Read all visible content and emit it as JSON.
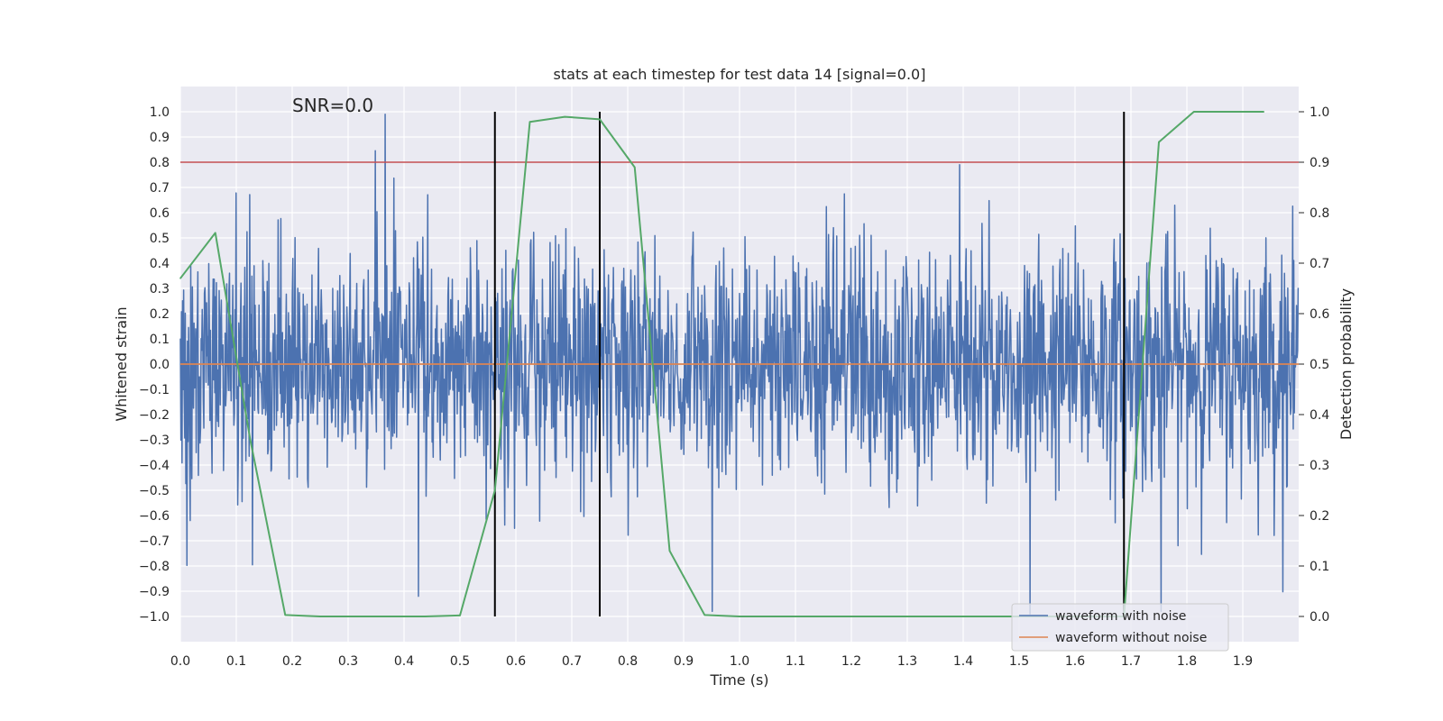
{
  "chart_data": {
    "type": "line",
    "title": "stats at each timestep for test data 14 [signal=0.0]",
    "xlabel": "Time (s)",
    "ylabel": "Whitened strain",
    "ylabel_right": "Detection probability",
    "xlim": [
      0.0,
      2.0
    ],
    "ylim": [
      -1.1,
      1.1
    ],
    "ylim_right": [
      -0.05,
      1.05
    ],
    "xticks": [
      "0.0",
      "0.1",
      "0.2",
      "0.3",
      "0.4",
      "0.5",
      "0.6",
      "0.7",
      "0.8",
      "0.9",
      "1.0",
      "1.1",
      "1.2",
      "1.3",
      "1.4",
      "1.5",
      "1.6",
      "1.7",
      "1.8",
      "1.9"
    ],
    "yticks": [
      "1.0",
      "0.9",
      "0.8",
      "0.7",
      "0.6",
      "0.5",
      "0.4",
      "0.3",
      "0.2",
      "0.1",
      "0.0",
      "−0.1",
      "−0.2",
      "−0.3",
      "−0.4",
      "−0.5",
      "−0.6",
      "−0.7",
      "−0.8",
      "−0.9",
      "−1.0"
    ],
    "yticks_right": [
      "1.0",
      "0.9",
      "0.8",
      "0.7",
      "0.6",
      "0.5",
      "0.4",
      "0.3",
      "0.2",
      "0.1",
      "0.0"
    ],
    "annotation": "SNR=0.0",
    "threshold": {
      "value": 0.9,
      "axis": "right",
      "color": "#c44e52"
    },
    "vertical_lines": [
      0.5625,
      0.75,
      1.6875
    ],
    "legend": {
      "placement": "lower-right"
    },
    "series": [
      {
        "name": "waveform with noise",
        "axis": "left",
        "color": "#4c72b0",
        "kind": "noise",
        "n_points": 2048,
        "sigma": 0.24,
        "seed": 14,
        "spikes": [
          [
            0.366,
            0.99
          ],
          [
            0.952,
            -0.98
          ],
          [
            1.52,
            -0.99
          ],
          [
            1.755,
            -0.98
          ],
          [
            1.394,
            0.79
          ],
          [
            0.426,
            -0.92
          ]
        ]
      },
      {
        "name": "waveform without noise",
        "axis": "left",
        "color": "#dd8452",
        "x": [
          0.0,
          2.0
        ],
        "y": [
          0.0,
          0.0
        ]
      },
      {
        "name": "detection probability",
        "axis": "right",
        "color": "#55a868",
        "x": [
          0.0,
          0.0625,
          0.125,
          0.1875,
          0.25,
          0.3125,
          0.375,
          0.4375,
          0.5,
          0.5625,
          0.625,
          0.6875,
          0.75,
          0.8125,
          0.875,
          0.9375,
          1.0,
          1.0625,
          1.125,
          1.1875,
          1.25,
          1.3125,
          1.375,
          1.4375,
          1.5,
          1.5625,
          1.625,
          1.6875,
          1.75,
          1.8125,
          1.875,
          1.9375
        ],
        "y": [
          0.67,
          0.76,
          0.35,
          0.003,
          0.0,
          0.0,
          0.0,
          0.0,
          0.002,
          0.25,
          0.98,
          0.99,
          0.985,
          0.89,
          0.13,
          0.003,
          0.0,
          0.0,
          0.0,
          0.0,
          0.0,
          0.0,
          0.0,
          0.0,
          0.0,
          0.0,
          0.0,
          0.0,
          0.94,
          1.0,
          1.0,
          1.0
        ]
      }
    ]
  }
}
